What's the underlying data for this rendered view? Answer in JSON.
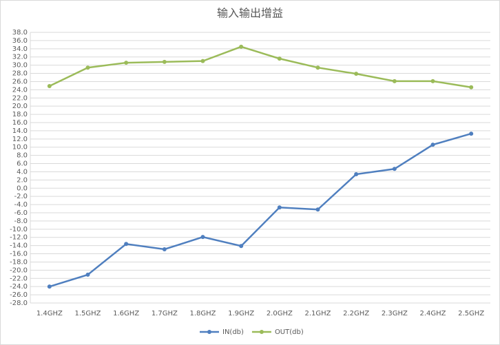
{
  "chart_data": {
    "type": "line",
    "title": "输入输出增益",
    "categories": [
      "1.4GHZ",
      "1.5GHZ",
      "1.6GHZ",
      "1.7GHZ",
      "1.8GHZ",
      "1.9GHZ",
      "2.0GHZ",
      "2.1GHZ",
      "2.2GHZ",
      "2.3GHZ",
      "2.4GHZ",
      "2.5GHZ"
    ],
    "series": [
      {
        "name": "IN(db)",
        "color": "#4f7fbf",
        "values": [
          -24.0,
          -21.1,
          -13.6,
          -14.9,
          -11.9,
          -14.1,
          -4.7,
          -5.2,
          3.4,
          4.7,
          10.6,
          13.3
        ]
      },
      {
        "name": "OUT(db)",
        "color": "#9bbb59",
        "values": [
          24.9,
          29.4,
          30.6,
          30.8,
          31.0,
          34.5,
          31.6,
          29.4,
          27.9,
          26.1,
          26.1,
          24.6
        ]
      }
    ],
    "ylim": [
      -28,
      38
    ],
    "yticks": [
      {
        "value": -28,
        "label": "-28.0"
      },
      {
        "value": -26,
        "label": "-26.0"
      },
      {
        "value": -24,
        "label": "-24.0"
      },
      {
        "value": -22,
        "label": "-22.0"
      },
      {
        "value": -20,
        "label": "-20.0"
      },
      {
        "value": -18,
        "label": "-18.0"
      },
      {
        "value": -16,
        "label": "-16.0"
      },
      {
        "value": -14,
        "label": "-14.0"
      },
      {
        "value": -12,
        "label": "-12.0"
      },
      {
        "value": -10,
        "label": "-10.0"
      },
      {
        "value": -8,
        "label": "-8.0"
      },
      {
        "value": -6,
        "label": "-6.0"
      },
      {
        "value": -4,
        "label": "-4.0"
      },
      {
        "value": -2,
        "label": "-2.0"
      },
      {
        "value": 0,
        "label": "0.0"
      },
      {
        "value": 2,
        "label": "2.0"
      },
      {
        "value": 4,
        "label": "4.0"
      },
      {
        "value": 6,
        "label": "6.0"
      },
      {
        "value": 8,
        "label": "8.0"
      },
      {
        "value": 10,
        "label": "10.0"
      },
      {
        "value": 12,
        "label": "12.0"
      },
      {
        "value": 14,
        "label": "14.0"
      },
      {
        "value": 16,
        "label": "16.0"
      },
      {
        "value": 18,
        "label": "18.0"
      },
      {
        "value": 20,
        "label": "20.0"
      },
      {
        "value": 22,
        "label": "22.0"
      },
      {
        "value": 24,
        "label": "24.0"
      },
      {
        "value": 26,
        "label": "26.0"
      },
      {
        "value": 28,
        "label": "28.0"
      },
      {
        "value": 30,
        "label": "30.0"
      },
      {
        "value": 32,
        "label": "32.0"
      },
      {
        "value": 34,
        "label": "34.0"
      },
      {
        "value": 36,
        "label": "36.0"
      },
      {
        "value": 38,
        "label": "38.0"
      }
    ],
    "grid": true,
    "legend": "bottom"
  }
}
